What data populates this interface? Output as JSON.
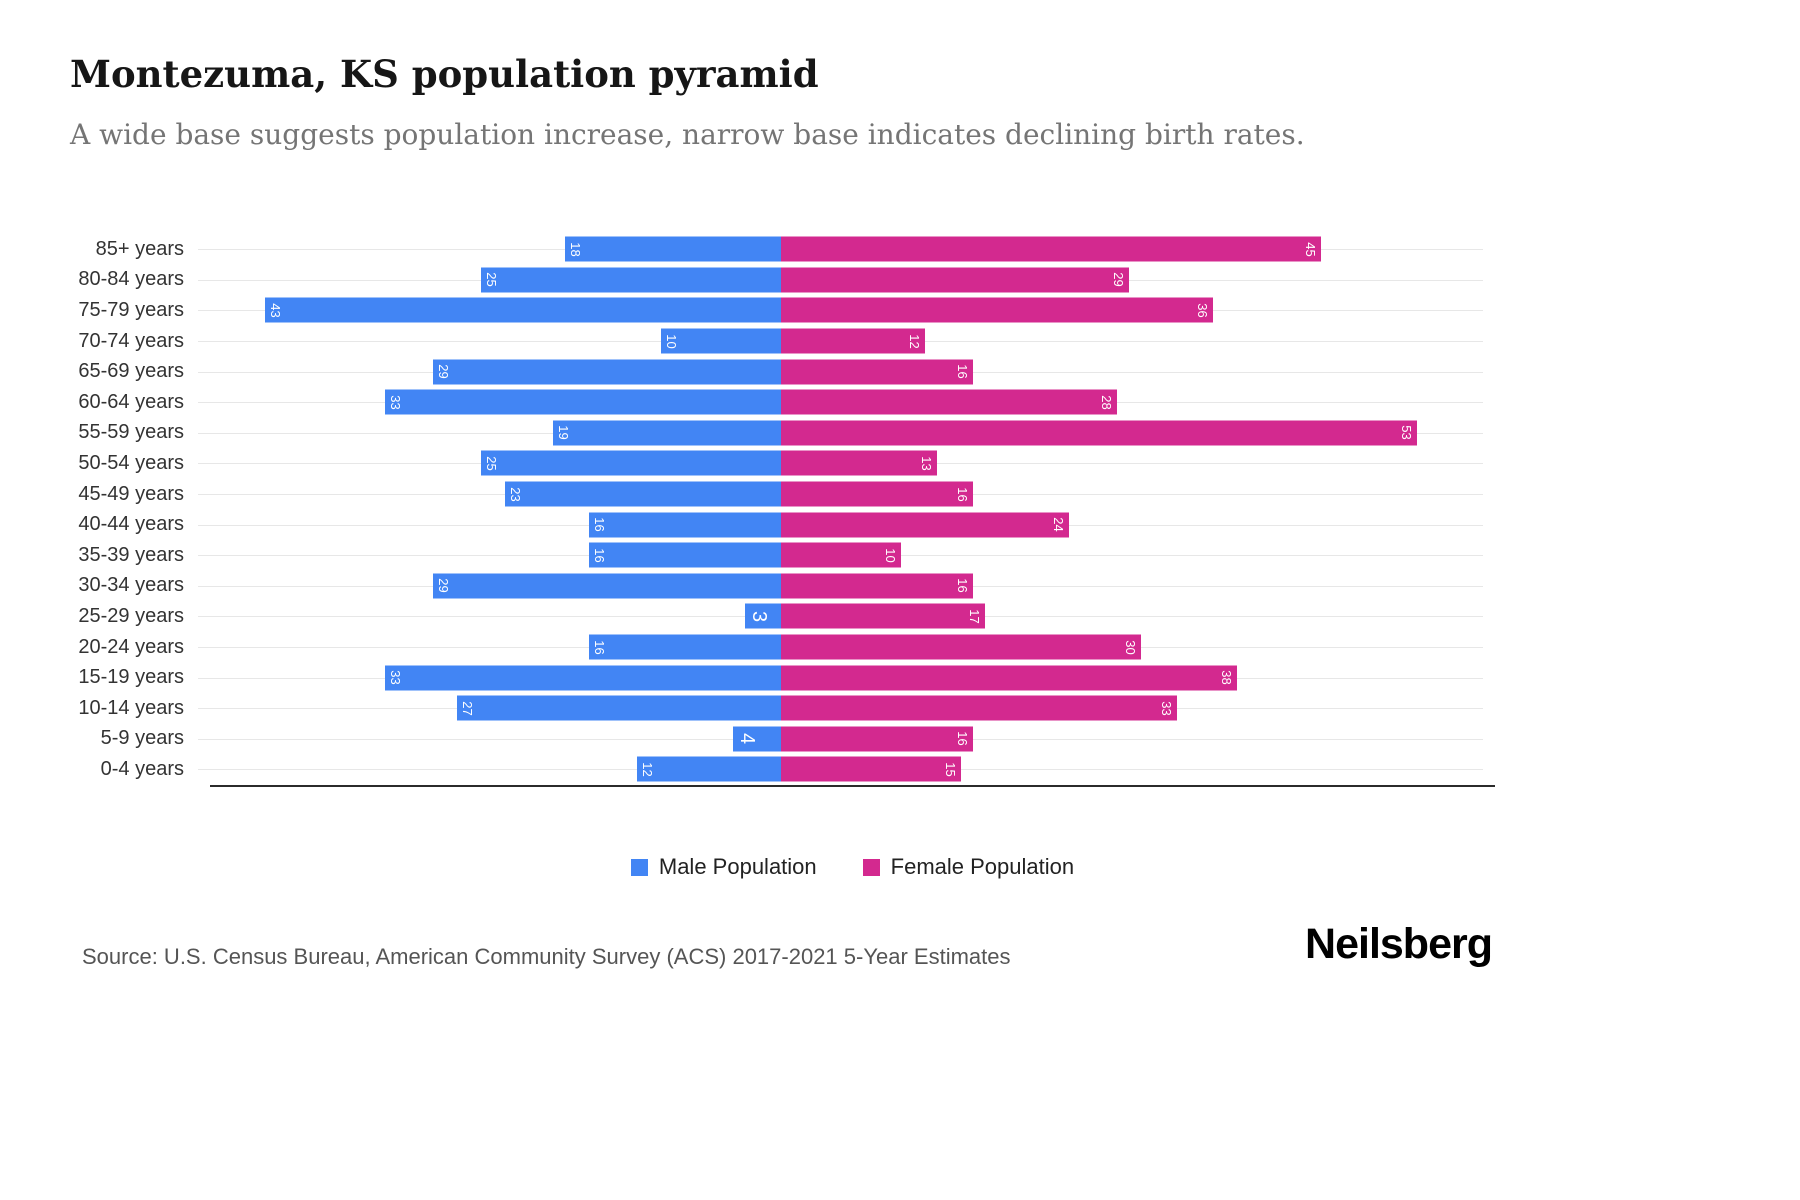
{
  "header": {
    "title": "Montezuma, KS population pyramid",
    "subtitle": "A wide base suggests population increase, narrow base indicates declining birth rates."
  },
  "legend": {
    "male_label": "Male Population",
    "female_label": "Female Population"
  },
  "footer": {
    "source": "Source: U.S. Census Bureau, American Community Survey (ACS) 2017-2021 5-Year Estimates",
    "brand": "Neilsberg"
  },
  "colors": {
    "male": "#4285f4",
    "female": "#d3298f",
    "gridline": "#e7e7e7",
    "axis": "#2b2b2b"
  },
  "chart_data": {
    "type": "bar",
    "variant": "population-pyramid",
    "orientation": "horizontal",
    "title": "Montezuma, KS population pyramid",
    "subtitle": "A wide base suggests population increase, narrow base indicates declining birth rates.",
    "categories": [
      "85+ years",
      "80-84 years",
      "75-79 years",
      "70-74 years",
      "65-69 years",
      "60-64 years",
      "55-59 years",
      "50-54 years",
      "45-49 years",
      "40-44 years",
      "35-39 years",
      "30-34 years",
      "25-29 years",
      "20-24 years",
      "15-19 years",
      "10-14 years",
      "5-9 years",
      "0-4 years"
    ],
    "series": [
      {
        "name": "Male Population",
        "side": "left",
        "color": "#4285f4",
        "values": [
          18,
          25,
          43,
          10,
          29,
          33,
          19,
          25,
          23,
          16,
          16,
          29,
          3,
          16,
          33,
          27,
          4,
          12
        ]
      },
      {
        "name": "Female Population",
        "side": "right",
        "color": "#d3298f",
        "values": [
          45,
          29,
          36,
          12,
          16,
          28,
          53,
          13,
          16,
          24,
          10,
          16,
          17,
          30,
          38,
          33,
          16,
          15
        ]
      }
    ],
    "value_labels": "white, rotated 90deg, placed at outer end inside each bar",
    "axis": {
      "gridlines": "light horizontal line per row",
      "baseline": "solid dark line at bottom"
    },
    "legend_position": "bottom-center"
  }
}
